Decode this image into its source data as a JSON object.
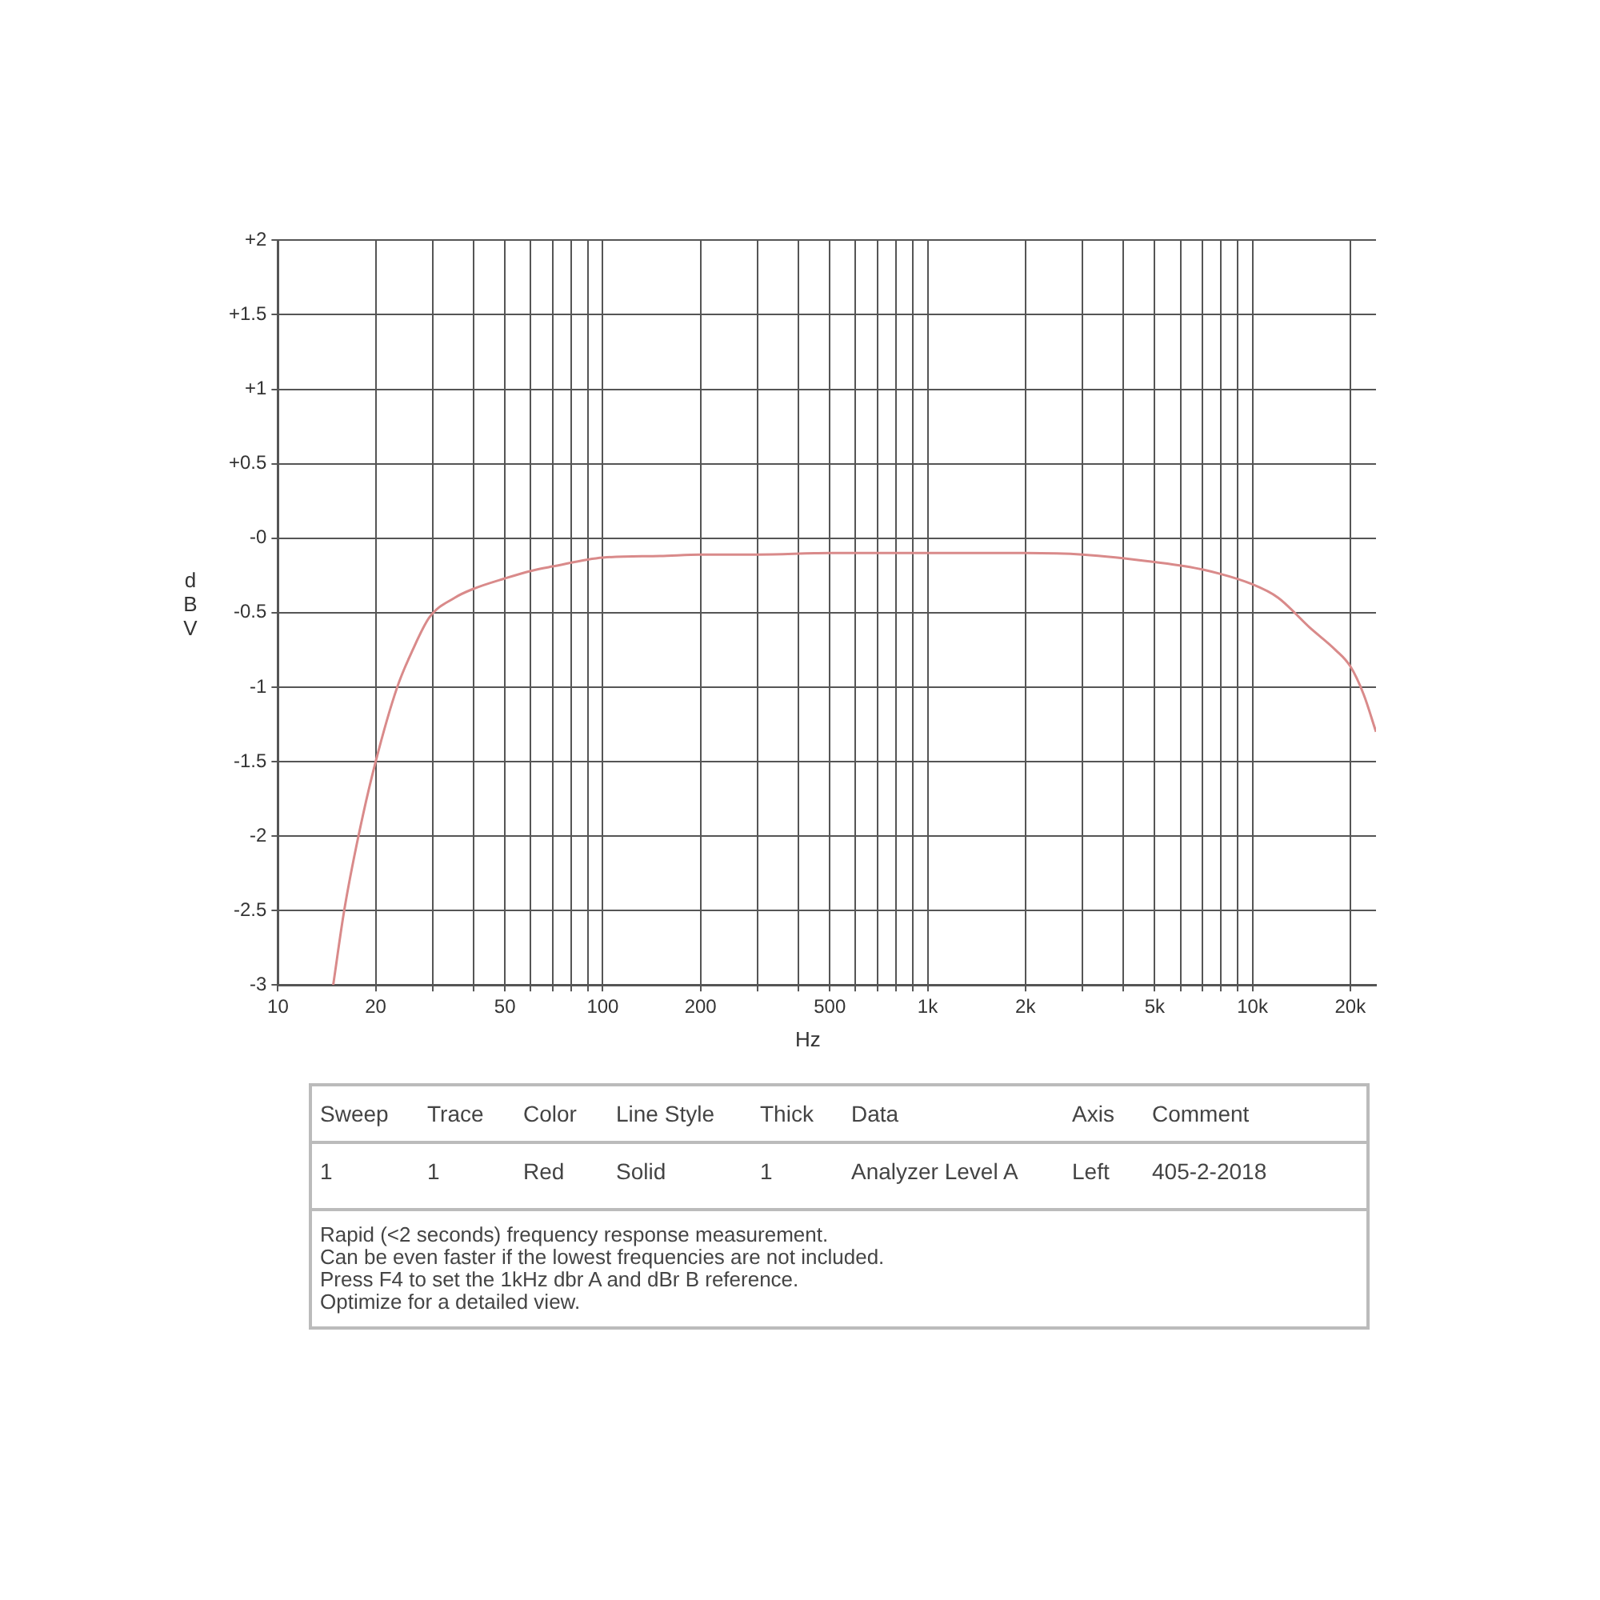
{
  "chart_data": {
    "type": "line",
    "xlabel": "Hz",
    "ylabel": "dBV",
    "x": [
      14.8,
      16,
      17.7,
      20,
      23.3,
      26,
      29.3,
      35,
      40,
      50,
      60,
      70,
      100,
      150,
      200,
      300,
      500,
      1000,
      2000,
      3000,
      5000,
      7000,
      10000,
      12000,
      15000,
      18000,
      20000,
      22000,
      24000
    ],
    "series": [
      {
        "color": "#d98a8a",
        "values": [
          -3,
          -2.5,
          -2,
          -1.5,
          -1,
          -0.75,
          -0.53,
          -0.4,
          -0.34,
          -0.27,
          -0.22,
          -0.19,
          -0.13,
          -0.12,
          -0.11,
          -0.11,
          -0.1,
          -0.1,
          -0.1,
          -0.11,
          -0.16,
          -0.21,
          -0.31,
          -0.4,
          -0.6,
          -0.75,
          -0.86,
          -1.05,
          -1.3
        ]
      }
    ],
    "xlim": [
      10,
      24000
    ],
    "xticks": [
      10,
      20,
      {
        "value": 30,
        "label": null
      },
      {
        "value": 40,
        "label": null
      },
      50,
      {
        "value": 60,
        "label": null
      },
      {
        "value": 70,
        "label": null
      },
      {
        "value": 80,
        "label": null
      },
      {
        "value": 90,
        "label": null
      },
      100,
      200,
      {
        "value": 300,
        "label": null
      },
      {
        "value": 400,
        "label": null
      },
      500,
      {
        "value": 600,
        "label": null
      },
      {
        "value": 700,
        "label": null
      },
      {
        "value": 800,
        "label": null
      },
      {
        "value": 900,
        "label": null
      },
      {
        "value": 1000,
        "label": "1k"
      },
      {
        "value": 2000,
        "label": "2k"
      },
      {
        "value": 3000,
        "label": null
      },
      {
        "value": 4000,
        "label": null
      },
      {
        "value": 5000,
        "label": "5k"
      },
      {
        "value": 6000,
        "label": null
      },
      {
        "value": 7000,
        "label": null
      },
      {
        "value": 8000,
        "label": null
      },
      {
        "value": 9000,
        "label": null
      },
      {
        "value": 10000,
        "label": "10k"
      },
      {
        "value": 20000,
        "label": "20k"
      }
    ],
    "ylim": [
      -3,
      2
    ],
    "yticks": [
      {
        "value": 2,
        "label": "+2"
      },
      {
        "value": 1.5,
        "label": "+1.5"
      },
      {
        "value": 1,
        "label": "+1"
      },
      {
        "value": 0.5,
        "label": "+0.5"
      },
      {
        "value": 0,
        "label": "-0"
      },
      -0.5,
      -1,
      -1.5,
      -2,
      -2.5,
      -3
    ],
    "log": "x",
    "grid": true,
    "legend": false,
    "marker": "none",
    "line_style": "solid",
    "annotations": [
      "Sweep",
      "Trace",
      "Color",
      "Line Style",
      "Thick",
      "Data",
      "Axis",
      "Comment",
      "1",
      "1",
      "Red",
      "Solid",
      "1",
      "Analyzer Level A",
      "Left",
      "405-2-2018",
      "Rapid (<2 seconds) frequency response measurement.",
      "Can be even faster if the lowest frequencies are not included.",
      "Press F4 to set the 1kHz dbr A and dBr B reference.",
      "Optimize for a detailed view."
    ]
  }
}
